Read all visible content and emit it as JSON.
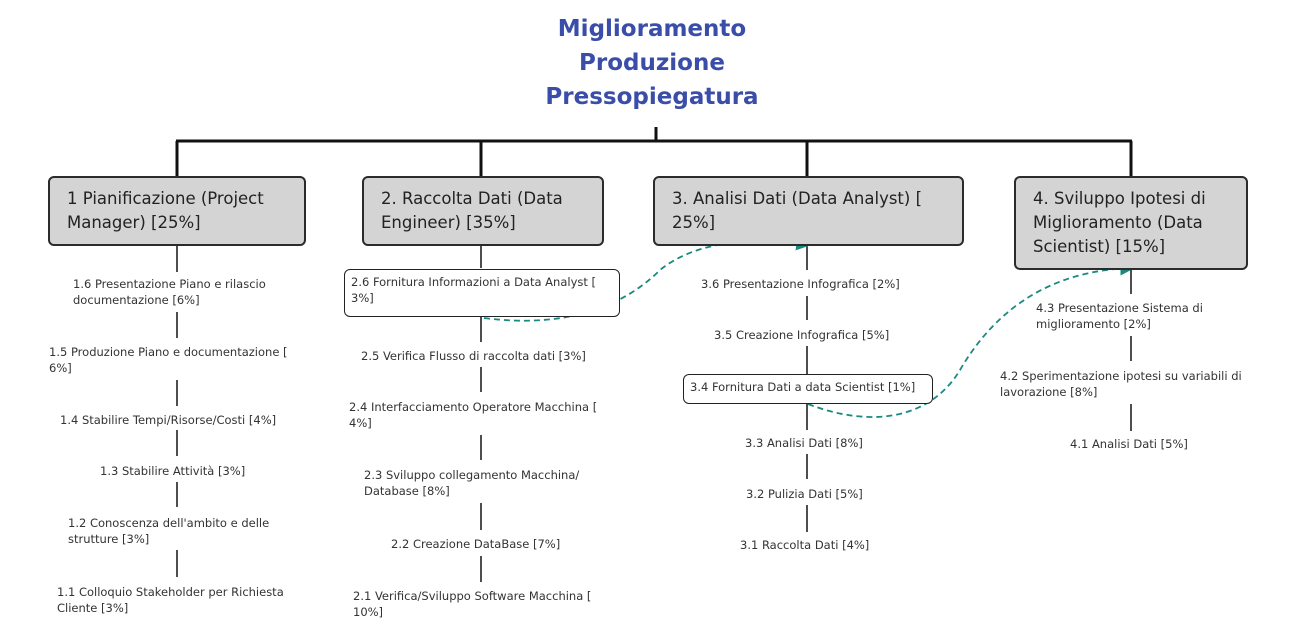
{
  "title": "Miglioramento\nProduzione\nPressopiegatura",
  "colors": {
    "title": "#3a4da8",
    "phase_fill": "#d4d4d4",
    "dependency_arrow": "#1a8a80"
  },
  "phases": [
    {
      "label": "1 Pianificazione (Project Manager) [25%]",
      "tasks": [
        "1.6 Presentazione Piano e rilascio documentazione [6%]",
        "1.5 Produzione Piano e documentazione [ 6%]",
        "1.4 Stabilire Tempi/Risorse/Costi [4%]",
        "1.3 Stabilire Attività [3%]",
        "1.2 Conoscenza dell'ambito e delle strutture [3%]",
        "1.1 Colloquio Stakeholder per Richiesta Cliente [3%]"
      ]
    },
    {
      "label": "2. Raccolta Dati (Data Engineer) [35%]",
      "tasks": [
        "2.6 Fornitura Informazioni a Data Analyst [ 3%]",
        "2.5 Verifica Flusso di raccolta dati [3%]",
        "2.4 Interfacciamento Operatore Macchina [ 4%]",
        "2.3 Sviluppo collegamento Macchina/ Database [8%]",
        "2.2 Creazione DataBase [7%]",
        "2.1 Verifica/Sviluppo Software Macchina [ 10%]"
      ]
    },
    {
      "label": "3. Analisi Dati (Data Analyst) [ 25%]",
      "tasks": [
        "3.6 Presentazione Infografica [2%]",
        "3.5 Creazione Infografica [5%]",
        "3.4 Fornitura Dati a data Scientist [1%]",
        "3.3 Analisi Dati [8%]",
        "3.2 Pulizia Dati [5%]",
        "3.1 Raccolta Dati [4%]"
      ]
    },
    {
      "label": "4. Sviluppo Ipotesi di Miglioramento (Data Scientist) [15%]",
      "tasks": [
        "4.3 Presentazione Sistema di miglioramento [2%]",
        "4.2 Sperimentazione ipotesi su variabili di lavorazione [8%]",
        "4.1 Analisi Dati [5%]"
      ]
    }
  ]
}
